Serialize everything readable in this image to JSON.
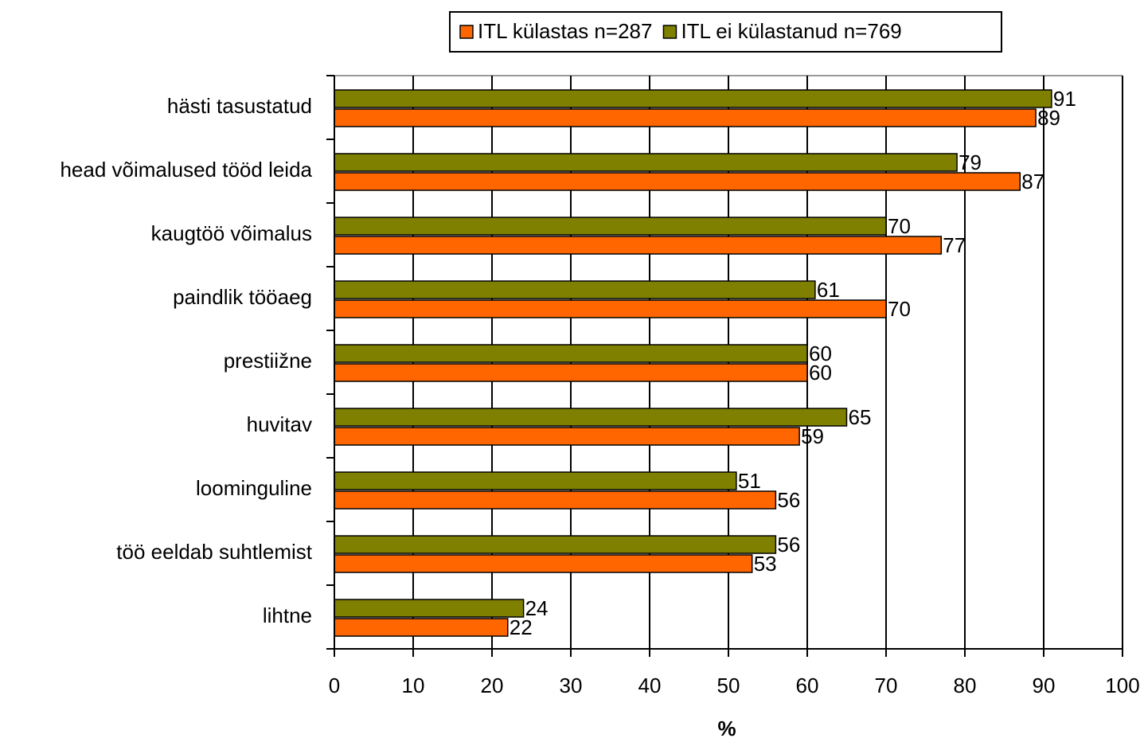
{
  "chart_data": {
    "type": "bar",
    "orientation": "horizontal",
    "x_label": "%",
    "categories": [
      "hästi tasustatud",
      "head võimalused tööd leida",
      "kaugtöö võimalus",
      "paindlik tööaeg",
      "prestiižne",
      "huvitav",
      "loominguline",
      "töö eeldab suhtlemist",
      "lihtne"
    ],
    "series": [
      {
        "name": "ITL külastas n=287",
        "color": "#ff6600",
        "values": [
          89,
          87,
          77,
          70,
          60,
          59,
          56,
          53,
          22
        ]
      },
      {
        "name": "ITL ei külastanud n=769",
        "color": "#808000",
        "values": [
          91,
          79,
          70,
          61,
          60,
          65,
          51,
          56,
          24
        ]
      }
    ],
    "xlim": [
      0,
      100
    ],
    "xticks": [
      0,
      10,
      20,
      30,
      40,
      50,
      60,
      70,
      80,
      90,
      100
    ],
    "grid": true,
    "legend": "top"
  }
}
